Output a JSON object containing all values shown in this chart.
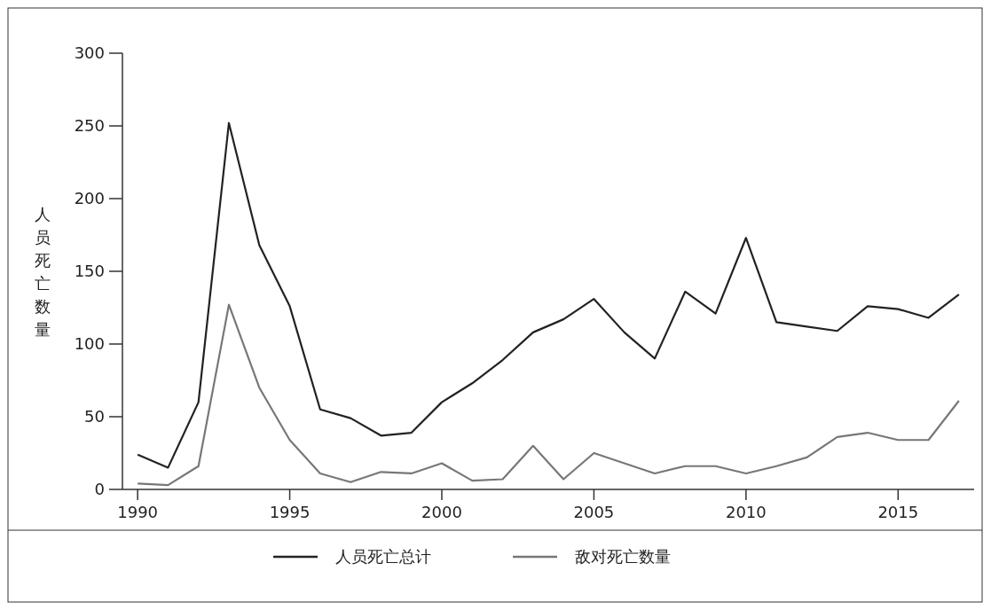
{
  "chart_data": {
    "type": "line",
    "ylabel": "人员死亡数量",
    "x": [
      1990,
      1991,
      1992,
      1993,
      1994,
      1995,
      1996,
      1997,
      1998,
      1999,
      2000,
      2001,
      2002,
      2003,
      2004,
      2005,
      2006,
      2007,
      2008,
      2009,
      2010,
      2011,
      2012,
      2013,
      2014,
      2015,
      2016,
      2017
    ],
    "series": [
      {
        "name": "人员死亡总计",
        "color": "#222222",
        "values": [
          24,
          15,
          60,
          252,
          168,
          126,
          55,
          49,
          37,
          39,
          60,
          73,
          89,
          108,
          117,
          131,
          108,
          90,
          136,
          121,
          173,
          115,
          112,
          109,
          126,
          124,
          118,
          134
        ]
      },
      {
        "name": "敌对死亡数量",
        "color": "#777777",
        "values": [
          4,
          3,
          16,
          127,
          70,
          34,
          11,
          5,
          12,
          11,
          18,
          6,
          7,
          30,
          7,
          25,
          18,
          11,
          16,
          16,
          11,
          16,
          22,
          36,
          39,
          34,
          34,
          61
        ]
      }
    ],
    "xlim": [
      1989.5,
      2017.5
    ],
    "xticks": [
      1990,
      1995,
      2000,
      2005,
      2010,
      2015
    ],
    "ylim": [
      0,
      300
    ],
    "yticks": [
      0,
      50,
      100,
      150,
      200,
      250,
      300
    ],
    "grid": false,
    "legend": "bottom",
    "marker": "none",
    "line_style": "solid"
  }
}
